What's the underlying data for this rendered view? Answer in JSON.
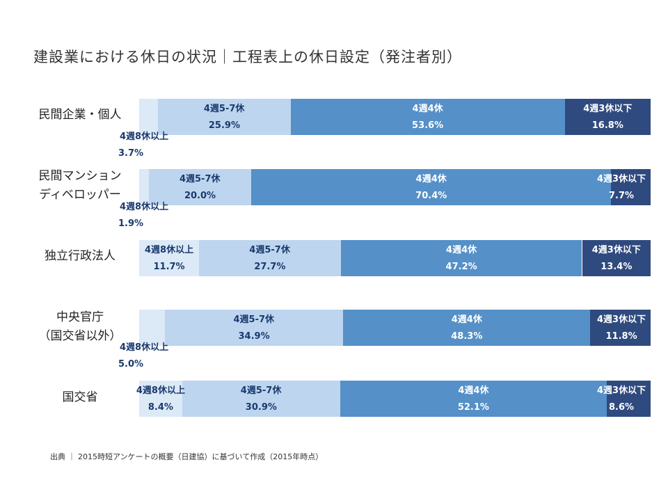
{
  "title": "建設業における休日の状況｜工程表上の休日設定（発注者別）",
  "source": "出典 ｜ 2015時短アンケートの概要（日建協）に基づいて作成（2015年時点）",
  "colors": [
    "#dce9f6",
    "#bdd5ee",
    "#5590c8",
    "#2f4a7e"
  ],
  "chart_data": {
    "type": "bar",
    "stacked": true,
    "orientation": "horizontal",
    "unit": "%",
    "categories": [
      [
        "民間企業・個人"
      ],
      [
        "民間マンション",
        "ディベロッパー"
      ],
      [
        "独立行政法人"
      ],
      [
        "中央官庁",
        "（国交省以外）"
      ],
      [
        "国交省"
      ]
    ],
    "series": [
      {
        "name": "4週8休以上",
        "values": [
          3.7,
          1.9,
          11.7,
          5.0,
          8.4
        ],
        "labels": [
          "3.7%",
          "1.9%",
          "11.7%",
          "5.0%",
          "8.4%"
        ]
      },
      {
        "name": "4週5-7休",
        "values": [
          25.9,
          20.0,
          27.7,
          34.9,
          30.9
        ],
        "labels": [
          "25.9%",
          "20.0%",
          "27.7%",
          "34.9%",
          "30.9%"
        ]
      },
      {
        "name": "4週4休",
        "values": [
          53.6,
          70.4,
          47.2,
          48.3,
          52.1
        ],
        "labels": [
          "53.6%",
          "70.4%",
          "47.2%",
          "48.3%",
          "52.1%"
        ]
      },
      {
        "name": "4週3休以下",
        "values": [
          16.8,
          7.7,
          13.4,
          11.8,
          8.6
        ],
        "labels": [
          "16.8%",
          "7.7%",
          "13.4%",
          "11.8%",
          "8.6%"
        ]
      }
    ]
  }
}
